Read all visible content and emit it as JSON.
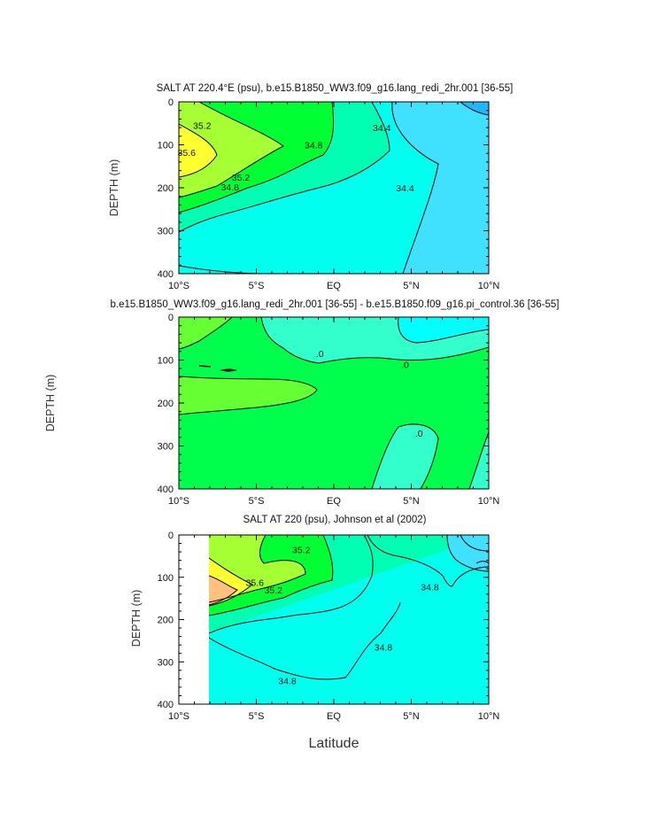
{
  "colors": {
    "salt_33_9": "#1fb8ff",
    "salt_34_2": "#40e0ff",
    "salt_34_6": "#00ffee",
    "salt_35_0": "#00ffb3",
    "salt_35_4": "#00ff33",
    "salt_35_6": "#a6ff33",
    "salt_35_8": "#ffff30",
    "salt_36_0": "#ffc080",
    "diff_neg_2": "#00ffff",
    "diff_neg_1": "#33ffcc",
    "diff_zero": "#00ff4d",
    "diff_pos_1": "#66ff33",
    "diff_pos_2": "#ccff33"
  },
  "chart_data": [
    {
      "type": "contour",
      "title": "SALT AT 220.4°E (psu), b.e15.B1850_WW3.f09_g16.lang_redi_2hr.001 [36-55]",
      "xlabel": "",
      "ylabel": "DEPTH (m)",
      "xlim": [
        -10,
        10
      ],
      "ylim": [
        400,
        0
      ],
      "x_ticks": [
        -10,
        -5,
        0,
        5,
        10
      ],
      "x_tick_labels": [
        "10°S",
        "5°S",
        "EQ",
        "5°N",
        "10°N"
      ],
      "y_ticks": [
        0,
        100,
        200,
        300,
        400
      ],
      "y_tick_labels": [
        "0",
        "100",
        "200",
        "300",
        "400"
      ],
      "contour_labels": [
        {
          "text": "35.2",
          "lat": -8.5,
          "depth": 55
        },
        {
          "text": "35.6",
          "lat": -9.5,
          "depth": 118
        },
        {
          "text": "35.2",
          "lat": -6.0,
          "depth": 175
        },
        {
          "text": "34.8",
          "lat": -6.7,
          "depth": 198
        },
        {
          "text": "34.8",
          "lat": -1.3,
          "depth": 100
        },
        {
          "text": "34.4",
          "lat": 3.1,
          "depth": 60
        },
        {
          "text": "34.4",
          "lat": 4.6,
          "depth": 200
        }
      ]
    },
    {
      "type": "contour",
      "title": "b.e15.B1850_WW3.f09_g16.lang_redi_2hr.001 [36-55] - b.e15.B1850.f09_g16.pi_control.36 [36-55]",
      "xlabel": "",
      "ylabel": "DEPTH (m)",
      "xlim": [
        -10,
        10
      ],
      "ylim": [
        400,
        0
      ],
      "x_ticks": [
        -10,
        -5,
        0,
        5,
        10
      ],
      "x_tick_labels": [
        "10°S",
        "5°S",
        "EQ",
        "5°N",
        "10°N"
      ],
      "y_ticks": [
        0,
        100,
        200,
        300,
        400
      ],
      "y_tick_labels": [
        "0",
        "100",
        "200",
        "300",
        "400"
      ],
      "contour_labels": [
        {
          "text": ".0",
          "lat": -0.9,
          "depth": 85
        },
        {
          "text": ".0",
          "lat": 4.6,
          "depth": 110
        },
        {
          "text": ".0",
          "lat": 5.5,
          "depth": 270
        }
      ]
    },
    {
      "type": "contour",
      "title": "SALT AT 220 (psu), Johnson et al (2002)",
      "xlabel": "Latitude",
      "ylabel": "DEPTH (m)",
      "xlim": [
        -10,
        10
      ],
      "ylim": [
        400,
        0
      ],
      "x_ticks": [
        -10,
        -5,
        0,
        5,
        10
      ],
      "x_tick_labels": [
        "10°S",
        "5°S",
        "EQ",
        "5°N",
        "10°N"
      ],
      "y_ticks": [
        0,
        100,
        200,
        300,
        400
      ],
      "y_tick_labels": [
        "0",
        "100",
        "200",
        "300",
        "400"
      ],
      "contour_labels": [
        {
          "text": "35.2",
          "lat": -2.1,
          "depth": 35
        },
        {
          "text": "35.6",
          "lat": -5.1,
          "depth": 112
        },
        {
          "text": "35.2",
          "lat": -3.9,
          "depth": 130
        },
        {
          "text": "34.8",
          "lat": 6.2,
          "depth": 122
        },
        {
          "text": "34.8",
          "lat": 3.2,
          "depth": 265
        },
        {
          "text": "34.8",
          "lat": -3.0,
          "depth": 345
        }
      ]
    }
  ]
}
